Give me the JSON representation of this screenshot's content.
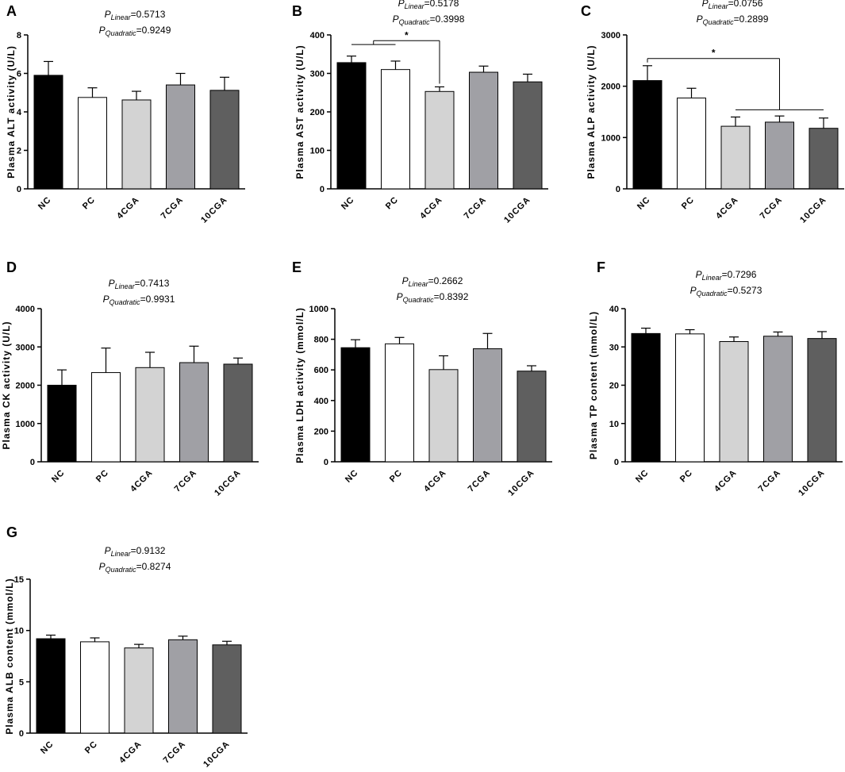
{
  "colors": {
    "bar_fills": [
      "#000000",
      "#ffffff",
      "#d3d3d3",
      "#a0a0a5",
      "#5f5f5f"
    ],
    "axis": "#000000"
  },
  "chart_data": [
    {
      "id": "A",
      "type": "bar",
      "letter": "A",
      "ylabel": "Plasma ALT activity (U/L)",
      "categories": [
        "NC",
        "PC",
        "4CGA",
        "7CGA",
        "10CGA"
      ],
      "values": [
        5.9,
        4.75,
        4.62,
        5.4,
        5.12
      ],
      "errors": [
        0.72,
        0.5,
        0.45,
        0.6,
        0.68
      ],
      "ylim": [
        0,
        8
      ],
      "yticks": [
        0,
        2,
        4,
        6,
        8
      ],
      "p_linear_label": "P",
      "p_linear_sub": "Linear",
      "p_linear_val": "=0.5713",
      "p_quad_label": "P",
      "p_quad_sub": "Quadratic",
      "p_quad_val": "=0.9249",
      "significance": []
    },
    {
      "id": "B",
      "type": "bar",
      "letter": "B",
      "ylabel": "Plasma AST activity (U/L)",
      "categories": [
        "NC",
        "PC",
        "4CGA",
        "7CGA",
        "10CGA"
      ],
      "values": [
        328,
        310,
        253,
        303,
        278
      ],
      "errors": [
        17,
        22,
        12,
        16,
        20
      ],
      "ylim": [
        0,
        400
      ],
      "yticks": [
        0,
        100,
        200,
        300,
        400
      ],
      "p_linear_label": "P",
      "p_linear_sub": "Linear",
      "p_linear_val": "=0.5178",
      "p_quad_label": "P",
      "p_quad_sub": "Quadratic",
      "p_quad_val": "=0.3998",
      "significance": [
        {
          "type": "bracket",
          "from": [
            0,
            1
          ],
          "to": 2,
          "y_group": 375,
          "y_top": 385,
          "label": "*"
        }
      ]
    },
    {
      "id": "C",
      "type": "bar",
      "letter": "C",
      "ylabel": "Plasma ALP activity (U/L)",
      "categories": [
        "NC",
        "PC",
        "4CGA",
        "7CGA",
        "10CGA"
      ],
      "values": [
        2110,
        1770,
        1220,
        1300,
        1180
      ],
      "errors": [
        290,
        190,
        180,
        120,
        200
      ],
      "ylim": [
        0,
        3000
      ],
      "yticks": [
        0,
        1000,
        2000,
        3000
      ],
      "p_linear_label": "P",
      "p_linear_sub": "Linear",
      "p_linear_val": "=0.0756",
      "p_quad_label": "P",
      "p_quad_sub": "Quadratic",
      "p_quad_val": "=0.2899",
      "significance": [
        {
          "type": "bracket",
          "from": [
            2,
            4
          ],
          "to": 0,
          "y_group": 1540,
          "y_top": 2540,
          "label": "*"
        }
      ]
    },
    {
      "id": "D",
      "type": "bar",
      "letter": "D",
      "ylabel": "Plasma CK activity (U/L)",
      "categories": [
        "NC",
        "PC",
        "4CGA",
        "7CGA",
        "10CGA"
      ],
      "values": [
        2000,
        2330,
        2460,
        2590,
        2550
      ],
      "errors": [
        400,
        640,
        400,
        430,
        160
      ],
      "ylim": [
        0,
        4000
      ],
      "yticks": [
        0,
        1000,
        2000,
        3000,
        4000
      ],
      "p_linear_label": "P",
      "p_linear_sub": "Linear",
      "p_linear_val": "=0.7413",
      "p_quad_label": "P",
      "p_quad_sub": "Quadratic",
      "p_quad_val": "=0.9931",
      "significance": []
    },
    {
      "id": "E",
      "type": "bar",
      "letter": "E",
      "ylabel": "Plasma LDH activity (mmol/L)",
      "categories": [
        "NC",
        "PC",
        "4CGA",
        "7CGA",
        "10CGA"
      ],
      "values": [
        745,
        770,
        602,
        738,
        592
      ],
      "errors": [
        52,
        42,
        90,
        100,
        35
      ],
      "ylim": [
        0,
        1000
      ],
      "yticks": [
        0,
        200,
        400,
        600,
        800,
        1000
      ],
      "p_linear_label": "P",
      "p_linear_sub": "Linear",
      "p_linear_val": "=0.2662",
      "p_quad_label": "P",
      "p_quad_sub": "Quadratic",
      "p_quad_val": "=0.8392",
      "significance": []
    },
    {
      "id": "F",
      "type": "bar",
      "letter": "F",
      "ylabel": "Plasma TP content (mmol/L)",
      "categories": [
        "NC",
        "PC",
        "4CGA",
        "7CGA",
        "10CGA"
      ],
      "values": [
        33.5,
        33.4,
        31.4,
        32.8,
        32.2
      ],
      "errors": [
        1.4,
        1.1,
        1.2,
        1.1,
        1.8
      ],
      "ylim": [
        0,
        40
      ],
      "yticks": [
        0,
        10,
        20,
        30,
        40
      ],
      "p_linear_label": "P",
      "p_linear_sub": "Linear",
      "p_linear_val": "=0.7296",
      "p_quad_label": "P",
      "p_quad_sub": "Quadratic",
      "p_quad_val": "=0.5273",
      "significance": []
    },
    {
      "id": "G",
      "type": "bar",
      "letter": "G",
      "ylabel": "Plasma ALB content (mmol/L)",
      "categories": [
        "NC",
        "PC",
        "4CGA",
        "7CGA",
        "10CGA"
      ],
      "values": [
        9.2,
        8.9,
        8.3,
        9.1,
        8.6
      ],
      "errors": [
        0.35,
        0.38,
        0.35,
        0.35,
        0.35
      ],
      "ylim": [
        0,
        15
      ],
      "yticks": [
        0,
        5,
        10,
        15
      ],
      "p_linear_label": "P",
      "p_linear_sub": "Linear",
      "p_linear_val": "=0.9132",
      "p_quad_label": "P",
      "p_quad_sub": "Quadratic",
      "p_quad_val": "=0.8274",
      "significance": []
    }
  ]
}
